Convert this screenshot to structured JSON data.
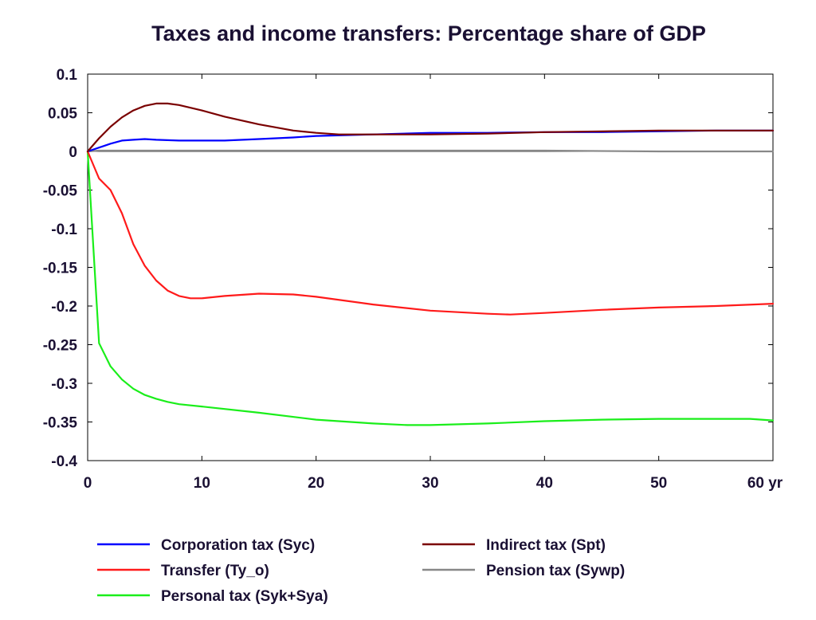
{
  "chart_data": {
    "type": "line",
    "title": "Taxes and income transfers: Percentage share of GDP",
    "xlabel": "",
    "ylabel": "",
    "x_unit": "yr",
    "xlim": [
      0,
      60
    ],
    "ylim": [
      -0.4,
      0.1
    ],
    "x_ticks": [
      0,
      10,
      20,
      30,
      40,
      50,
      60
    ],
    "x_tick_labels": [
      "0",
      "10",
      "20",
      "30",
      "40",
      "50",
      "60 yr"
    ],
    "y_ticks": [
      0.1,
      0.05,
      0,
      -0.05,
      -0.1,
      -0.15,
      -0.2,
      -0.25,
      -0.3,
      -0.35,
      -0.4
    ],
    "y_tick_labels": [
      "0.1",
      "0.05",
      "0",
      "-0.05",
      "-0.1",
      "-0.15",
      "-0.2",
      "-0.25",
      "-0.3",
      "-0.35",
      "-0.4"
    ],
    "grid": false,
    "legend_position": "bottom",
    "series": [
      {
        "name": "Corporation tax (Syc)",
        "color": "#0000ff",
        "x": [
          0,
          1,
          2,
          3,
          4,
          5,
          6,
          8,
          10,
          12,
          15,
          18,
          20,
          25,
          30,
          35,
          40,
          45,
          50,
          55,
          60
        ],
        "y": [
          0,
          0.005,
          0.01,
          0.014,
          0.015,
          0.016,
          0.015,
          0.014,
          0.014,
          0.014,
          0.016,
          0.018,
          0.02,
          0.022,
          0.024,
          0.024,
          0.025,
          0.025,
          0.026,
          0.027,
          0.027
        ]
      },
      {
        "name": "Transfer (Ty_o)",
        "color": "#ff1a1a",
        "x": [
          0,
          1,
          2,
          3,
          4,
          5,
          6,
          7,
          8,
          9,
          10,
          12,
          15,
          18,
          20,
          25,
          30,
          35,
          37,
          40,
          45,
          50,
          55,
          60
        ],
        "y": [
          0,
          -0.035,
          -0.05,
          -0.08,
          -0.12,
          -0.148,
          -0.167,
          -0.18,
          -0.187,
          -0.19,
          -0.19,
          -0.187,
          -0.184,
          -0.185,
          -0.188,
          -0.198,
          -0.206,
          -0.21,
          -0.211,
          -0.209,
          -0.205,
          -0.202,
          -0.2,
          -0.197
        ]
      },
      {
        "name": "Personal tax (Syk+Sya)",
        "color": "#1aee1a",
        "x": [
          0,
          1,
          2,
          3,
          4,
          5,
          6,
          7,
          8,
          10,
          15,
          20,
          25,
          28,
          30,
          35,
          40,
          45,
          50,
          55,
          58,
          60
        ],
        "y": [
          0,
          -0.248,
          -0.278,
          -0.295,
          -0.307,
          -0.315,
          -0.32,
          -0.324,
          -0.327,
          -0.33,
          -0.338,
          -0.347,
          -0.352,
          -0.354,
          -0.354,
          -0.352,
          -0.349,
          -0.347,
          -0.346,
          -0.346,
          -0.346,
          -0.348
        ]
      },
      {
        "name": "Indirect tax (Spt)",
        "color": "#7a0000",
        "x": [
          0,
          1,
          2,
          3,
          4,
          5,
          6,
          7,
          8,
          10,
          12,
          15,
          18,
          20,
          22,
          25,
          30,
          35,
          40,
          45,
          50,
          55,
          60
        ],
        "y": [
          0,
          0.017,
          0.032,
          0.044,
          0.053,
          0.059,
          0.062,
          0.062,
          0.06,
          0.053,
          0.045,
          0.035,
          0.027,
          0.024,
          0.022,
          0.022,
          0.022,
          0.023,
          0.025,
          0.026,
          0.027,
          0.027,
          0.027
        ]
      },
      {
        "name": "Pension tax (Sywp)",
        "color": "#888888",
        "x": [
          0,
          1,
          10,
          20,
          30,
          40,
          50,
          60
        ],
        "y": [
          0,
          0.001,
          0.001,
          0.001,
          0.001,
          0.001,
          0.0,
          0.0
        ]
      }
    ],
    "zero_line": true
  }
}
